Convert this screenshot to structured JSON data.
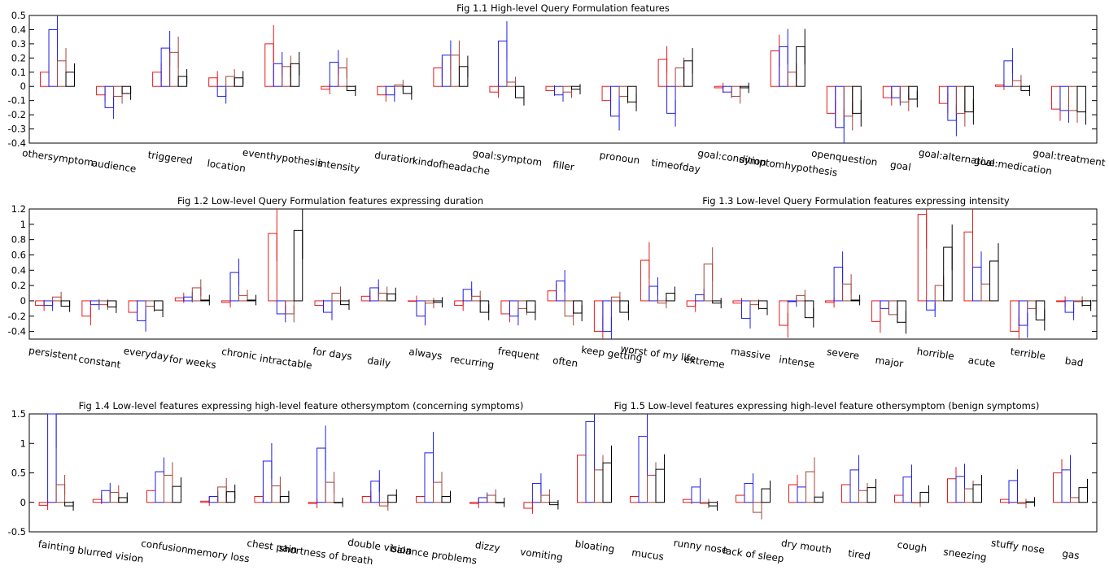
{
  "colors": {
    "s1": "#e41a1c",
    "s2": "#1f1fe8",
    "s3": "#a0443a",
    "s4": "#000000"
  },
  "chart_data": [
    {
      "type": "bar",
      "title": "Fig 1.1 High-level Query Formulation features",
      "ylim": [
        -0.4,
        0.5
      ],
      "yticks": [
        "0.5",
        "0.4",
        "0.3",
        "0.2",
        "0.1",
        "0",
        "-0.1",
        "-0.2",
        "-0.3",
        "-0.4"
      ],
      "categories": [
        "othersymptom",
        "audience",
        "triggered",
        "location",
        "eventhypothesis",
        "intensity",
        "duration",
        "kindofheadache",
        "goal:symptom",
        "filler",
        "pronoun",
        "timeofday",
        "goal:condition",
        "symptomhypothesis",
        "openquestion",
        "goal",
        "goal:alternative",
        "goal:medication",
        "goal:treatment"
      ],
      "series": [
        {
          "values": [
            0.1,
            -0.06,
            0.1,
            0.06,
            0.3,
            -0.02,
            -0.06,
            0.13,
            -0.04,
            -0.03,
            -0.1,
            0.19,
            -0.01,
            0.25,
            -0.19,
            -0.08,
            -0.12,
            0.01,
            -0.16
          ]
        },
        {
          "values": [
            0.4,
            -0.15,
            0.27,
            -0.07,
            0.16,
            0.17,
            -0.06,
            0.22,
            0.32,
            -0.06,
            -0.21,
            -0.19,
            -0.04,
            0.28,
            -0.29,
            -0.08,
            -0.24,
            0.18,
            -0.17
          ]
        },
        {
          "values": [
            0.18,
            -0.07,
            0.24,
            0.07,
            0.14,
            0.13,
            0.01,
            0.22,
            0.03,
            -0.04,
            -0.07,
            0.13,
            -0.07,
            0.1,
            -0.21,
            -0.11,
            -0.19,
            0.04,
            -0.17
          ]
        },
        {
          "values": [
            0.1,
            -0.05,
            0.07,
            0.06,
            0.16,
            -0.03,
            -0.05,
            0.14,
            -0.08,
            -0.02,
            -0.11,
            0.18,
            -0.01,
            0.28,
            -0.19,
            -0.09,
            -0.18,
            -0.03,
            -0.18
          ]
        }
      ]
    },
    {
      "type": "bar",
      "title": "Fig 1.2 Low-level Query Formulation features expressing duration",
      "ylim": [
        -0.5,
        1.2
      ],
      "yticks": [
        "1.2",
        "1",
        "0.8",
        "0.6",
        "0.4",
        "0.2",
        "0",
        "-0.2",
        "-0.4"
      ],
      "categories": [
        "persistent",
        "constant",
        "everyday",
        "for weeks",
        "chronic",
        "intractable",
        "for days",
        "daily",
        "always",
        "recurring",
        "frequent",
        "often",
        "keep getting"
      ],
      "series": [
        {
          "values": [
            -0.06,
            -0.2,
            -0.15,
            0.04,
            -0.02,
            0.88,
            -0.06,
            0.06,
            0.0,
            -0.06,
            -0.17,
            0.13,
            -0.4
          ]
        },
        {
          "values": [
            -0.06,
            -0.05,
            -0.26,
            0.05,
            0.37,
            -0.17,
            -0.15,
            0.17,
            -0.2,
            0.15,
            -0.2,
            0.26,
            -0.4
          ]
        },
        {
          "values": [
            0.05,
            -0.05,
            -0.07,
            0.17,
            0.07,
            -0.17,
            0.1,
            0.1,
            -0.03,
            0.06,
            -0.1,
            -0.2,
            0.05
          ]
        },
        {
          "values": [
            -0.07,
            -0.08,
            -0.12,
            0.01,
            0.01,
            0.92,
            -0.05,
            0.09,
            -0.02,
            -0.15,
            -0.15,
            -0.16,
            -0.15
          ]
        }
      ]
    },
    {
      "type": "bar",
      "title": "Fig 1.3 Low-level Query Formulation features expressing intensity",
      "categories": [
        "worst of my life",
        "extreme",
        "massive",
        "intense",
        "severe",
        "major",
        "horrible",
        "acute",
        "terrible",
        "bad"
      ],
      "series": [
        {
          "values": [
            0.53,
            -0.07,
            -0.03,
            -0.32,
            -0.02,
            -0.27,
            1.13,
            0.9,
            -0.4,
            -0.01
          ]
        },
        {
          "values": [
            0.19,
            0.08,
            -0.23,
            -0.01,
            0.44,
            -0.1,
            -0.12,
            0.44,
            -0.32,
            -0.15
          ]
        },
        {
          "values": [
            -0.03,
            0.48,
            -0.05,
            0.07,
            0.22,
            -0.18,
            0.2,
            0.22,
            -0.1,
            -0.01
          ]
        },
        {
          "values": [
            0.1,
            -0.03,
            -0.1,
            -0.22,
            0.01,
            -0.28,
            0.7,
            0.52,
            -0.25,
            -0.06
          ]
        }
      ]
    },
    {
      "type": "bar",
      "title": "Fig 1.4 Low-level features expressing high-level feature othersymptom (concerning symptoms)",
      "ylim": [
        -0.5,
        1.5
      ],
      "yticks": [
        "1.5",
        "1",
        "0.5",
        "0",
        "-0.5"
      ],
      "categories": [
        "fainting",
        "blurred vision",
        "confusion",
        "memory loss",
        "chest pain",
        "shortness of breath",
        "double vision",
        "balance problems",
        "dizzy",
        "vomiting"
      ],
      "series": [
        {
          "values": [
            -0.05,
            0.05,
            0.2,
            0.02,
            0.1,
            -0.02,
            0.1,
            0.1,
            -0.02,
            -0.1
          ]
        },
        {
          "values": [
            1.5,
            0.2,
            0.52,
            0.1,
            0.7,
            0.92,
            0.36,
            0.84,
            0.08,
            0.32
          ]
        },
        {
          "values": [
            0.3,
            0.17,
            0.46,
            0.26,
            0.28,
            0.34,
            -0.06,
            0.34,
            0.12,
            0.12
          ]
        },
        {
          "values": [
            -0.06,
            0.08,
            0.27,
            0.18,
            0.1,
            0.0,
            0.12,
            0.1,
            0.0,
            -0.04
          ]
        }
      ]
    },
    {
      "type": "bar",
      "title": "Fig 1.5 Low-level features expressing high-level feature othersymptom (benign symptoms)",
      "categories": [
        "bloating",
        "mucus",
        "runny nose",
        "lack of sleep",
        "dry mouth",
        "tired",
        "cough",
        "sneezing",
        "stuffy nose",
        "gas"
      ],
      "series": [
        {
          "values": [
            0.8,
            0.1,
            0.05,
            0.12,
            0.3,
            0.3,
            0.12,
            0.4,
            0.05,
            0.5
          ]
        },
        {
          "values": [
            1.37,
            1.12,
            0.26,
            0.32,
            0.26,
            0.55,
            0.43,
            0.44,
            0.37,
            0.55
          ]
        },
        {
          "values": [
            0.55,
            0.46,
            -0.02,
            -0.17,
            0.52,
            0.2,
            0.0,
            0.23,
            -0.02,
            0.08
          ]
        },
        {
          "values": [
            0.67,
            0.56,
            -0.06,
            0.23,
            0.09,
            0.25,
            0.17,
            0.3,
            0.01,
            0.25
          ]
        }
      ]
    }
  ]
}
